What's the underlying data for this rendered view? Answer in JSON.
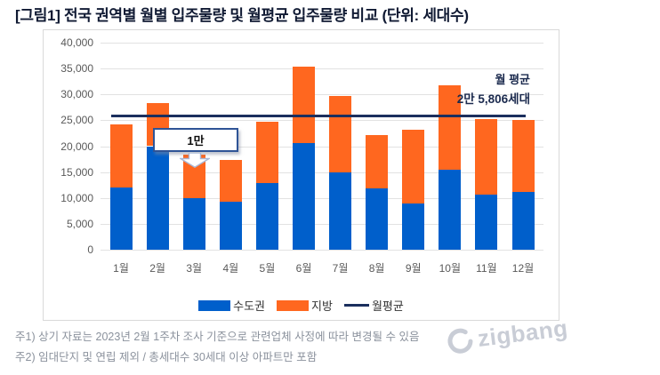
{
  "title": "[그림1] 전국 권역별 월별 입주물량 및 월평균 입주물량 비교 (단위: 세대수)",
  "chart_data": {
    "type": "bar",
    "stacked": true,
    "title": "전국 권역별 월별 입주물량 및 월평균 입주물량 비교",
    "unit": "세대수",
    "categories": [
      "1월",
      "2월",
      "3월",
      "4월",
      "5월",
      "6월",
      "7월",
      "8월",
      "9월",
      "10월",
      "11월",
      "12월"
    ],
    "series": [
      {
        "name": "수도권",
        "color": "#005fcb",
        "values": [
          12100,
          20000,
          10000,
          9200,
          12800,
          20600,
          14900,
          11900,
          8900,
          15500,
          10600,
          11200
        ]
      },
      {
        "name": "지방",
        "color": "#ff671f",
        "values": [
          12200,
          8300,
          8300,
          8100,
          11900,
          14700,
          14800,
          10200,
          14300,
          16200,
          14700,
          13800
        ]
      }
    ],
    "totals": [
      24300,
      28300,
      18300,
      17300,
      24700,
      35300,
      29700,
      22100,
      23200,
      31700,
      25300,
      25000
    ],
    "average_line": {
      "name": "월평균",
      "value": 25806,
      "color": "#1b2f5e",
      "label_line1": "월 평균",
      "label_line2": "2만 5,806세대"
    },
    "annotation": {
      "text": "1만",
      "target_category": "3월"
    },
    "ylim": [
      0,
      40000
    ],
    "ytick_step": 5000,
    "grid": true,
    "grid_color": "#e2e2e2",
    "legend_position": "bottom",
    "legend": [
      "수도권",
      "지방",
      "월평균"
    ]
  },
  "footnotes": [
    "주1) 상기 자료는 2023년 2월 1주차 조사 기준으로 관련업체 사정에 따라 변경될 수 있음",
    "주2) 임대단지 및 연립 제외 / 총세대수 30세대 이상 아파트만 포함"
  ],
  "watermark": {
    "text": "zigbang"
  }
}
